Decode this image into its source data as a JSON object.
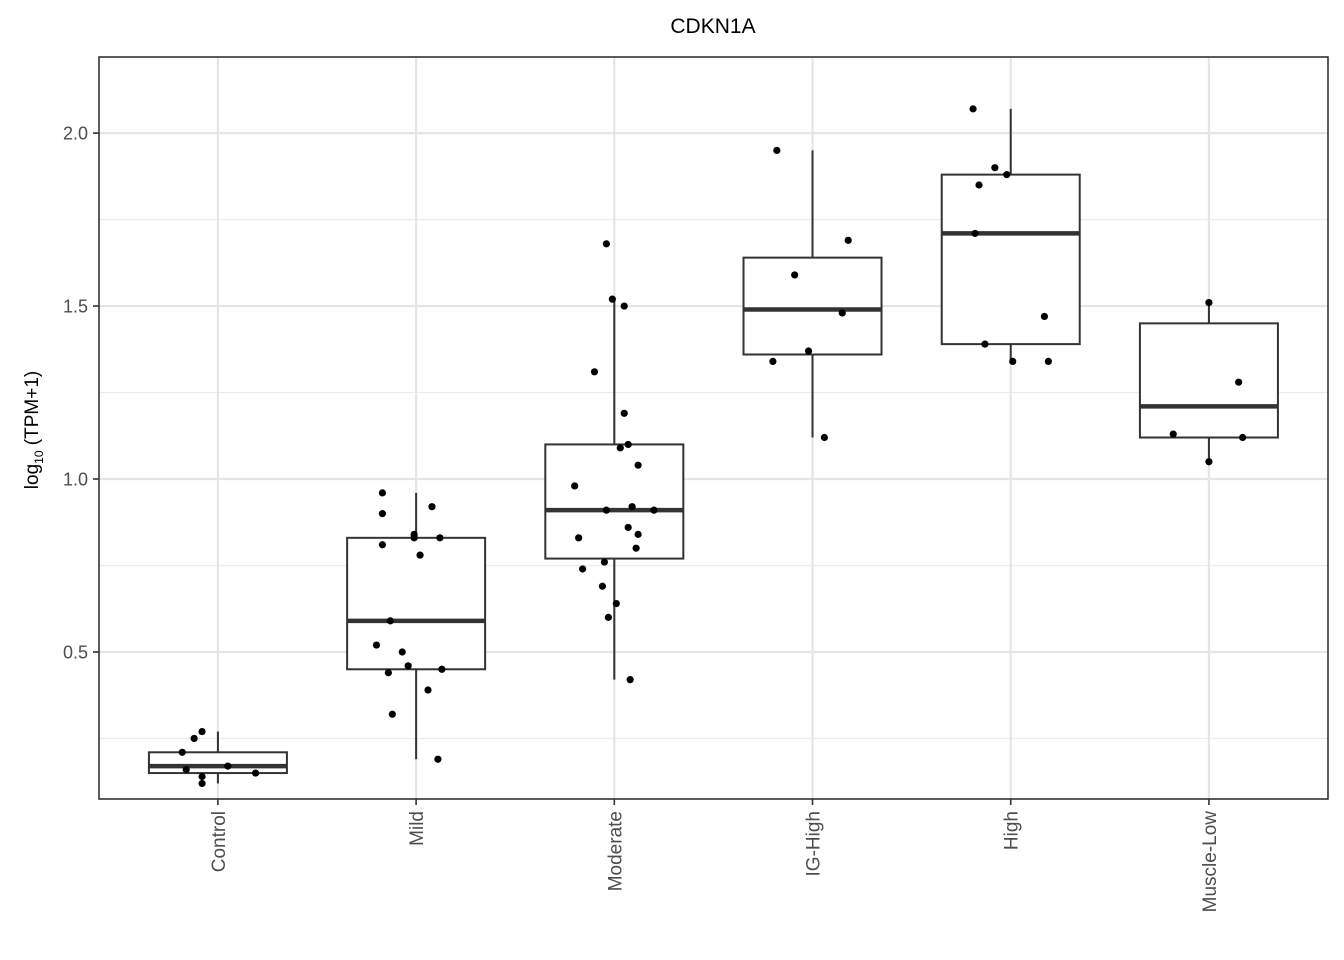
{
  "chart_data": {
    "type": "box",
    "title": "CDKN1A",
    "xlabel": "",
    "ylabel": {
      "base": "log",
      "sub": "10",
      "rest": " (TPM+1)"
    },
    "ylim": [
      0.075,
      2.22
    ],
    "yticks": [
      0.5,
      1.0,
      1.5,
      2.0
    ],
    "ytick_labels": [
      "0.5",
      "1.0",
      "1.5",
      "2.0"
    ],
    "grid": true,
    "categories": [
      "Control",
      "Mild",
      "Moderate",
      "IG-High",
      "High",
      "Muscle-Low"
    ],
    "boxes": [
      {
        "q1": 0.15,
        "median": 0.17,
        "q3": 0.21,
        "whisker_low": 0.12,
        "whisker_high": 0.27
      },
      {
        "q1": 0.45,
        "median": 0.59,
        "q3": 0.83,
        "whisker_low": 0.19,
        "whisker_high": 0.96
      },
      {
        "q1": 0.77,
        "median": 0.91,
        "q3": 1.1,
        "whisker_low": 0.42,
        "whisker_high": 1.52
      },
      {
        "q1": 1.36,
        "median": 1.49,
        "q3": 1.64,
        "whisker_low": 1.12,
        "whisker_high": 1.95
      },
      {
        "q1": 1.39,
        "median": 1.71,
        "q3": 1.88,
        "whisker_low": 1.34,
        "whisker_high": 2.07
      },
      {
        "q1": 1.12,
        "median": 1.21,
        "q3": 1.45,
        "whisker_low": 1.05,
        "whisker_high": 1.51
      }
    ],
    "points": [
      {
        "group": 0,
        "jitter": -0.18,
        "y": 0.21
      },
      {
        "group": 0,
        "jitter": -0.12,
        "y": 0.25
      },
      {
        "group": 0,
        "jitter": -0.08,
        "y": 0.27
      },
      {
        "group": 0,
        "jitter": -0.16,
        "y": 0.16
      },
      {
        "group": 0,
        "jitter": 0.05,
        "y": 0.17
      },
      {
        "group": 0,
        "jitter": 0.19,
        "y": 0.15
      },
      {
        "group": 0,
        "jitter": -0.08,
        "y": 0.14
      },
      {
        "group": 0,
        "jitter": -0.08,
        "y": 0.12
      },
      {
        "group": 1,
        "jitter": -0.17,
        "y": 0.96
      },
      {
        "group": 1,
        "jitter": -0.17,
        "y": 0.9
      },
      {
        "group": 1,
        "jitter": 0.08,
        "y": 0.92
      },
      {
        "group": 1,
        "jitter": -0.17,
        "y": 0.81
      },
      {
        "group": 1,
        "jitter": -0.01,
        "y": 0.84
      },
      {
        "group": 1,
        "jitter": -0.01,
        "y": 0.83
      },
      {
        "group": 1,
        "jitter": 0.12,
        "y": 0.83
      },
      {
        "group": 1,
        "jitter": 0.02,
        "y": 0.78
      },
      {
        "group": 1,
        "jitter": -0.13,
        "y": 0.59
      },
      {
        "group": 1,
        "jitter": -0.2,
        "y": 0.52
      },
      {
        "group": 1,
        "jitter": -0.07,
        "y": 0.5
      },
      {
        "group": 1,
        "jitter": -0.04,
        "y": 0.46
      },
      {
        "group": 1,
        "jitter": 0.13,
        "y": 0.45
      },
      {
        "group": 1,
        "jitter": -0.14,
        "y": 0.44
      },
      {
        "group": 1,
        "jitter": 0.06,
        "y": 0.39
      },
      {
        "group": 1,
        "jitter": -0.12,
        "y": 0.32
      },
      {
        "group": 1,
        "jitter": 0.11,
        "y": 0.19
      },
      {
        "group": 2,
        "jitter": -0.04,
        "y": 1.68
      },
      {
        "group": 2,
        "jitter": -0.01,
        "y": 1.52
      },
      {
        "group": 2,
        "jitter": 0.05,
        "y": 1.5
      },
      {
        "group": 2,
        "jitter": -0.1,
        "y": 1.31
      },
      {
        "group": 2,
        "jitter": 0.05,
        "y": 1.19
      },
      {
        "group": 2,
        "jitter": 0.07,
        "y": 1.1
      },
      {
        "group": 2,
        "jitter": 0.03,
        "y": 1.09
      },
      {
        "group": 2,
        "jitter": 0.12,
        "y": 1.04
      },
      {
        "group": 2,
        "jitter": -0.2,
        "y": 0.98
      },
      {
        "group": 2,
        "jitter": -0.04,
        "y": 0.91
      },
      {
        "group": 2,
        "jitter": 0.09,
        "y": 0.92
      },
      {
        "group": 2,
        "jitter": 0.2,
        "y": 0.91
      },
      {
        "group": 2,
        "jitter": 0.07,
        "y": 0.86
      },
      {
        "group": 2,
        "jitter": 0.12,
        "y": 0.84
      },
      {
        "group": 2,
        "jitter": -0.18,
        "y": 0.83
      },
      {
        "group": 2,
        "jitter": 0.11,
        "y": 0.8
      },
      {
        "group": 2,
        "jitter": -0.05,
        "y": 0.76
      },
      {
        "group": 2,
        "jitter": -0.16,
        "y": 0.74
      },
      {
        "group": 2,
        "jitter": -0.06,
        "y": 0.69
      },
      {
        "group": 2,
        "jitter": 0.01,
        "y": 0.64
      },
      {
        "group": 2,
        "jitter": -0.03,
        "y": 0.6
      },
      {
        "group": 2,
        "jitter": 0.08,
        "y": 0.42
      },
      {
        "group": 3,
        "jitter": -0.18,
        "y": 1.95
      },
      {
        "group": 3,
        "jitter": 0.18,
        "y": 1.69
      },
      {
        "group": 3,
        "jitter": -0.09,
        "y": 1.59
      },
      {
        "group": 3,
        "jitter": 0.15,
        "y": 1.48
      },
      {
        "group": 3,
        "jitter": -0.02,
        "y": 1.37
      },
      {
        "group": 3,
        "jitter": -0.2,
        "y": 1.34
      },
      {
        "group": 3,
        "jitter": 0.06,
        "y": 1.12
      },
      {
        "group": 4,
        "jitter": -0.19,
        "y": 2.07
      },
      {
        "group": 4,
        "jitter": -0.08,
        "y": 1.9
      },
      {
        "group": 4,
        "jitter": -0.02,
        "y": 1.88
      },
      {
        "group": 4,
        "jitter": -0.16,
        "y": 1.85
      },
      {
        "group": 4,
        "jitter": -0.18,
        "y": 1.71
      },
      {
        "group": 4,
        "jitter": 0.17,
        "y": 1.47
      },
      {
        "group": 4,
        "jitter": -0.13,
        "y": 1.39
      },
      {
        "group": 4,
        "jitter": 0.01,
        "y": 1.34
      },
      {
        "group": 4,
        "jitter": 0.19,
        "y": 1.34
      },
      {
        "group": 5,
        "jitter": 0.0,
        "y": 1.51
      },
      {
        "group": 5,
        "jitter": 0.15,
        "y": 1.28
      },
      {
        "group": 5,
        "jitter": -0.18,
        "y": 1.13
      },
      {
        "group": 5,
        "jitter": 0.17,
        "y": 1.12
      },
      {
        "group": 5,
        "jitter": 0.0,
        "y": 1.05
      }
    ]
  }
}
